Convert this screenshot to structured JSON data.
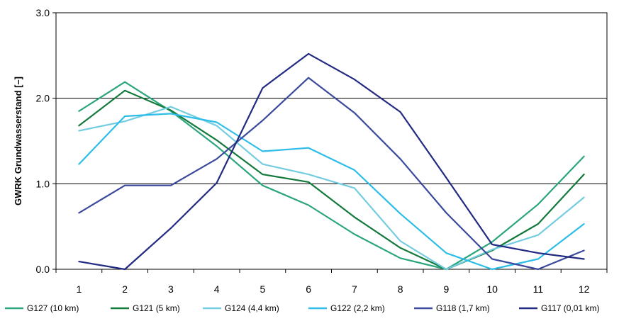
{
  "chart_data": {
    "type": "line",
    "title": "",
    "xlabel": "",
    "ylabel": "GWRK Grundwasserstand [–]",
    "x": [
      1,
      2,
      3,
      4,
      5,
      6,
      7,
      8,
      9,
      10,
      11,
      12
    ],
    "x_tick_labels": [
      "1",
      "2",
      "3",
      "4",
      "5",
      "6",
      "7",
      "8",
      "9",
      "10",
      "11",
      "12"
    ],
    "ylim": [
      0,
      3
    ],
    "y_ticks": [
      0,
      1,
      2,
      3
    ],
    "y_tick_labels": [
      "0.0",
      "1.0",
      "2.0",
      "3.0"
    ],
    "grid": {
      "horizontal": true,
      "vertical": false
    },
    "legend_position": "bottom",
    "series": [
      {
        "name": "G127 (10 km)",
        "color": "#2aa57c",
        "values": [
          1.85,
          2.19,
          1.85,
          1.44,
          0.98,
          0.75,
          0.41,
          0.13,
          0.0,
          0.32,
          0.76,
          1.32
        ]
      },
      {
        "name": "G121 (5 km)",
        "color": "#137a3c",
        "values": [
          1.68,
          2.09,
          1.86,
          1.51,
          1.11,
          1.02,
          0.61,
          0.25,
          0.0,
          0.22,
          0.53,
          1.11
        ]
      },
      {
        "name": "G124 (4,4 km)",
        "color": "#74cce0",
        "values": [
          1.62,
          1.73,
          1.9,
          1.68,
          1.23,
          1.11,
          0.95,
          0.33,
          0.0,
          0.23,
          0.4,
          0.84
        ]
      },
      {
        "name": "G122 (2,2 km)",
        "color": "#2cbde8",
        "values": [
          1.23,
          1.79,
          1.82,
          1.72,
          1.38,
          1.42,
          1.16,
          0.65,
          0.19,
          0.0,
          0.12,
          0.53
        ]
      },
      {
        "name": "G118 (1,7 km)",
        "color": "#3b4a9c",
        "values": [
          0.66,
          0.98,
          0.98,
          1.29,
          1.74,
          2.24,
          1.83,
          1.29,
          0.66,
          0.12,
          0.0,
          0.22
        ]
      },
      {
        "name": "G117 (0,01 km)",
        "color": "#222a82",
        "values": [
          0.09,
          0.0,
          0.48,
          1.01,
          2.12,
          2.52,
          2.22,
          1.84,
          1.07,
          0.29,
          0.19,
          0.12
        ]
      }
    ]
  }
}
